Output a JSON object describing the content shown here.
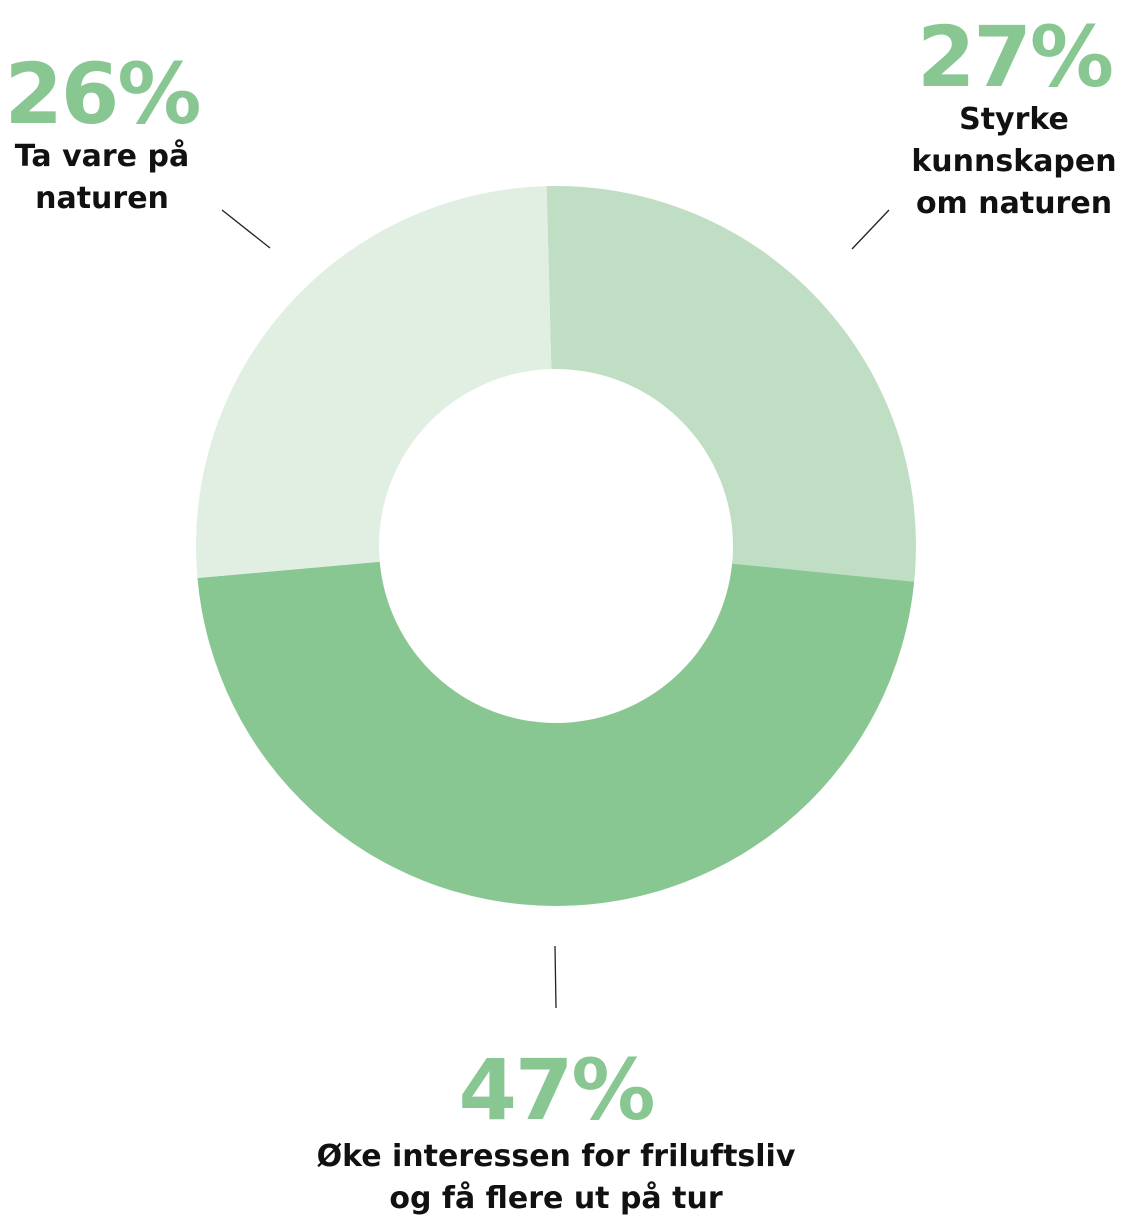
{
  "chart_data": {
    "type": "pie",
    "donut": true,
    "slices": [
      {
        "percent": 27,
        "value_label": "27%",
        "label_lines": [
          "Styrke",
          "kunnskapen",
          "om naturen"
        ],
        "color": "#c0dec3"
      },
      {
        "percent": 47,
        "value_label": "47%",
        "label_lines": [
          "Øke interessen for friluftsliv",
          "og få flere ut på tur"
        ],
        "color": "#88c692"
      },
      {
        "percent": 26,
        "value_label": "26%",
        "label_lines": [
          "Ta vare på",
          "naturen"
        ],
        "color": "#e0efe2"
      }
    ],
    "legend": "none",
    "grid": false
  }
}
